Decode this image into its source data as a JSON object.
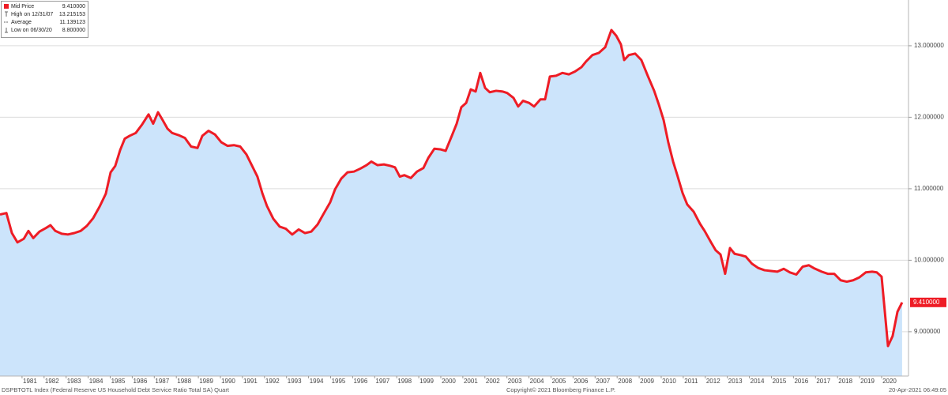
{
  "chart_data": {
    "type": "area",
    "series": [
      {
        "name": "Mid Price",
        "color": "#ee1c25",
        "fill": "#cce4fb",
        "last_label": "9.410000",
        "x": [
          1980.0,
          1980.29,
          1980.54,
          1980.79,
          1981.08,
          1981.29,
          1981.51,
          1981.79,
          1982.08,
          1982.29,
          1982.51,
          1982.8,
          1983.08,
          1983.37,
          1983.66,
          1983.94,
          1984.23,
          1984.52,
          1984.8,
          1985.02,
          1985.23,
          1985.45,
          1985.66,
          1985.88,
          1986.16,
          1986.45,
          1986.74,
          1986.95,
          1987.17,
          1987.38,
          1987.6,
          1987.81,
          1988.1,
          1988.39,
          1988.67,
          1988.96,
          1989.18,
          1989.46,
          1989.75,
          1990.04,
          1990.32,
          1990.61,
          1990.9,
          1991.18,
          1991.47,
          1991.68,
          1991.9,
          1992.11,
          1992.4,
          1992.69,
          1992.97,
          1993.26,
          1993.55,
          1993.84,
          1994.12,
          1994.41,
          1994.7,
          1994.98,
          1995.2,
          1995.48,
          1995.77,
          1996.06,
          1996.34,
          1996.63,
          1996.85,
          1997.13,
          1997.42,
          1997.71,
          1997.92,
          1998.14,
          1998.35,
          1998.64,
          1998.92,
          1999.21,
          1999.43,
          1999.71,
          2000.0,
          2000.22,
          2000.5,
          2000.72,
          2000.93,
          2001.15,
          2001.36,
          2001.58,
          2001.79,
          2002.01,
          2002.22,
          2002.51,
          2002.8,
          2003.01,
          2003.3,
          2003.51,
          2003.73,
          2004.01,
          2004.23,
          2004.52,
          2004.73,
          2004.95,
          2005.23,
          2005.52,
          2005.81,
          2006.09,
          2006.38,
          2006.59,
          2006.88,
          2007.17,
          2007.46,
          2007.74,
          2007.96,
          2008.17,
          2008.32,
          2008.53,
          2008.82,
          2009.1,
          2009.39,
          2009.68,
          2009.89,
          2010.11,
          2010.32,
          2010.54,
          2010.75,
          2010.97,
          2011.18,
          2011.47,
          2011.76,
          2011.97,
          2012.26,
          2012.47,
          2012.69,
          2012.9,
          2013.12,
          2013.33,
          2013.62,
          2013.84,
          2014.12,
          2014.41,
          2014.69,
          2014.98,
          2015.27,
          2015.56,
          2015.84,
          2016.13,
          2016.42,
          2016.7,
          2016.92,
          2017.28,
          2017.56,
          2017.85,
          2018.14,
          2018.42,
          2018.71,
          2018.99,
          2019.28,
          2019.57,
          2019.78,
          2020.0,
          2020.29,
          2020.5,
          2020.72,
          2020.93
        ],
        "values": [
          10.64,
          10.66,
          10.38,
          10.25,
          10.3,
          10.41,
          10.31,
          10.4,
          10.45,
          10.49,
          10.41,
          10.37,
          10.36,
          10.38,
          10.41,
          10.48,
          10.59,
          10.75,
          10.93,
          11.23,
          11.32,
          11.54,
          11.7,
          11.74,
          11.78,
          11.9,
          12.04,
          11.91,
          12.07,
          11.96,
          11.84,
          11.78,
          11.75,
          11.71,
          11.59,
          11.57,
          11.74,
          11.81,
          11.76,
          11.65,
          11.6,
          11.61,
          11.59,
          11.48,
          11.3,
          11.17,
          10.94,
          10.76,
          10.58,
          10.47,
          10.44,
          10.36,
          10.43,
          10.38,
          10.4,
          10.5,
          10.66,
          10.81,
          10.99,
          11.14,
          11.23,
          11.24,
          11.28,
          11.33,
          11.38,
          11.33,
          11.34,
          11.32,
          11.3,
          11.17,
          11.19,
          11.15,
          11.24,
          11.29,
          11.43,
          11.56,
          11.55,
          11.53,
          11.74,
          11.91,
          12.14,
          12.2,
          12.39,
          12.36,
          12.62,
          12.41,
          12.35,
          12.37,
          12.36,
          12.34,
          12.27,
          12.15,
          12.23,
          12.2,
          12.15,
          12.25,
          12.25,
          12.57,
          12.58,
          12.62,
          12.6,
          12.64,
          12.7,
          12.78,
          12.87,
          12.9,
          12.98,
          13.22,
          13.14,
          13.02,
          12.8,
          12.87,
          12.89,
          12.8,
          12.58,
          12.37,
          12.18,
          11.96,
          11.65,
          11.38,
          11.17,
          10.94,
          10.78,
          10.68,
          10.51,
          10.41,
          10.25,
          10.14,
          10.08,
          9.81,
          10.17,
          10.09,
          10.07,
          10.05,
          9.95,
          9.89,
          9.86,
          9.85,
          9.84,
          9.88,
          9.83,
          9.8,
          9.91,
          9.93,
          9.89,
          9.84,
          9.81,
          9.81,
          9.72,
          9.7,
          9.72,
          9.76,
          9.83,
          9.84,
          9.83,
          9.77,
          8.8,
          8.94,
          9.28,
          9.41
        ]
      }
    ],
    "legend_stats": [
      {
        "label": "High on 12/31/07",
        "value": "13.215153"
      },
      {
        "label": "Average",
        "value": "11.139123"
      },
      {
        "label": "Low on 06/30/20",
        "value": "8.800000"
      }
    ],
    "xlim": [
      1980,
      2021.22
    ],
    "xticks": [
      1981,
      1982,
      1983,
      1984,
      1985,
      1986,
      1987,
      1988,
      1989,
      1990,
      1991,
      1992,
      1993,
      1994,
      1995,
      1996,
      1997,
      1998,
      1999,
      2000,
      2001,
      2002,
      2003,
      2004,
      2005,
      2006,
      2007,
      2008,
      2009,
      2010,
      2011,
      2012,
      2013,
      2014,
      2015,
      2016,
      2017,
      2018,
      2019,
      2020
    ],
    "ylim": [
      8.38,
      13.64
    ],
    "yticks": [
      {
        "value": 9,
        "label": "9.000000"
      },
      {
        "value": 10,
        "label": "10.000000"
      },
      {
        "value": 11,
        "label": "11.000000"
      },
      {
        "value": 12,
        "label": "12.000000"
      },
      {
        "value": 13,
        "label": "13.000000"
      }
    ],
    "grid": true,
    "footer_left": "DSPBTOTL Index (Federal Reserve US Household Debt Service Ratio Total SA)  Quart",
    "footer_center": "Copyright© 2021 Bloomberg Finance L.P.",
    "footer_right": "20-Apr-2021 06:49:05"
  }
}
